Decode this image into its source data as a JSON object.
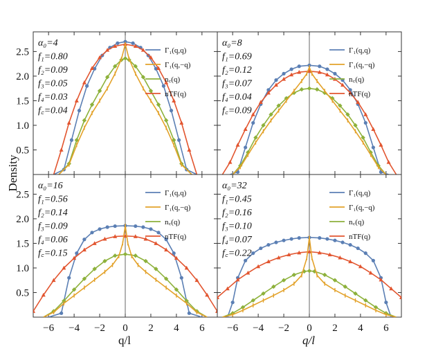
{
  "figure": {
    "ylabel": "Density",
    "xlabel_left": "q/l",
    "xlabel_right": "q/l"
  },
  "colors": {
    "gamma_qq": "#5b7fb4",
    "gamma_qmq": "#e3a22a",
    "nc": "#8db13b",
    "ntf": "#e2552f"
  },
  "legend": [
    "Γ₁(q,q)",
    "Γ₁(q,−q)",
    "n꜀(q)",
    "nTF(q)"
  ],
  "chart_data": [
    {
      "type": "line",
      "title": "α0=4",
      "params": [
        "α₀=4",
        "f₁=0.80",
        "f₂=0.09",
        "f₃=0.05",
        "f₄=0.03",
        "f꜀=0.04"
      ],
      "xlim": [
        -7.2,
        7.2
      ],
      "ylim": [
        0,
        2.9
      ],
      "xticks": [],
      "yticks": [
        "0.5",
        "1.0",
        "1.5",
        "2.0",
        "2.5"
      ],
      "series": [
        {
          "name": "Γ₁(q,q)",
          "x": [
            -5.6,
            -4.8,
            -4.2,
            -3.6,
            -3.0,
            -2.4,
            -1.8,
            -1.2,
            -0.6,
            0,
            0.6,
            1.2,
            1.8,
            2.4,
            3.0,
            3.6,
            4.2,
            4.8,
            5.6
          ],
          "y": [
            0,
            0.1,
            0.7,
            1.3,
            1.8,
            2.15,
            2.42,
            2.58,
            2.67,
            2.7,
            2.67,
            2.58,
            2.42,
            2.15,
            1.8,
            1.3,
            0.7,
            0.1,
            0
          ]
        },
        {
          "name": "Γ₁(q,−q)",
          "x": [
            -5.2,
            -4.4,
            -3.8,
            -3.2,
            -2.6,
            -2.0,
            -1.4,
            -0.8,
            -0.3,
            0,
            0.3,
            0.8,
            1.4,
            2.0,
            2.6,
            3.2,
            3.8,
            4.4,
            5.2
          ],
          "y": [
            0,
            0.2,
            0.6,
            0.95,
            1.25,
            1.5,
            1.75,
            2.05,
            2.35,
            2.65,
            2.35,
            2.05,
            1.75,
            1.5,
            1.25,
            0.95,
            0.6,
            0.2,
            0
          ]
        },
        {
          "name": "n꜀(q)",
          "x": [
            -5.2,
            -4.4,
            -3.8,
            -3.2,
            -2.6,
            -2.0,
            -1.4,
            -0.8,
            -0.3,
            0,
            0.3,
            0.8,
            1.4,
            2.0,
            2.6,
            3.2,
            3.8,
            4.4,
            5.2
          ],
          "y": [
            0,
            0.22,
            0.7,
            1.1,
            1.42,
            1.7,
            1.98,
            2.2,
            2.33,
            2.36,
            2.33,
            2.2,
            1.98,
            1.7,
            1.42,
            1.1,
            0.7,
            0.22,
            0
          ]
        },
        {
          "name": "nTF(q)",
          "x": [
            -5.6,
            -5.0,
            -4.4,
            -3.8,
            -3.2,
            -2.6,
            -2.0,
            -1.4,
            -0.8,
            0,
            0.8,
            1.4,
            2.0,
            2.6,
            3.2,
            3.8,
            4.4,
            5.0,
            5.6
          ],
          "y": [
            0,
            0.5,
            1.05,
            1.5,
            1.87,
            2.16,
            2.38,
            2.53,
            2.61,
            2.65,
            2.61,
            2.53,
            2.38,
            2.16,
            1.87,
            1.5,
            1.05,
            0.5,
            0
          ]
        }
      ]
    },
    {
      "type": "line",
      "title": "α0=8",
      "params": [
        "α₀=8",
        "f₁=0.69",
        "f₂=0.12",
        "f₃=0.07",
        "f₄=0.04",
        "f꜀=0.09"
      ],
      "xlim": [
        -7.2,
        7.2
      ],
      "ylim": [
        0,
        2.9
      ],
      "xticks": [],
      "yticks": [],
      "series": [
        {
          "name": "Γ₁(q,q)",
          "x": [
            -6.2,
            -5.6,
            -5.0,
            -4.4,
            -3.8,
            -3.2,
            -2.6,
            -2.0,
            -1.4,
            -0.8,
            0,
            0.8,
            1.4,
            2.0,
            2.6,
            3.2,
            3.8,
            4.4,
            5.0,
            5.6,
            6.2
          ],
          "y": [
            0,
            0.05,
            0.55,
            1.05,
            1.43,
            1.72,
            1.92,
            2.05,
            2.14,
            2.2,
            2.22,
            2.2,
            2.14,
            2.05,
            1.92,
            1.72,
            1.43,
            1.05,
            0.55,
            0.05,
            0
          ]
        },
        {
          "name": "Γ₁(q,−q)",
          "x": [
            -6.0,
            -5.4,
            -4.8,
            -4.2,
            -3.6,
            -3.0,
            -2.4,
            -1.8,
            -1.2,
            -0.6,
            -0.2,
            0,
            0.2,
            0.6,
            1.2,
            1.8,
            2.4,
            3.0,
            3.6,
            4.2,
            4.8,
            5.4,
            6.0
          ],
          "y": [
            0,
            0.15,
            0.4,
            0.65,
            0.88,
            1.1,
            1.3,
            1.5,
            1.7,
            1.9,
            2.05,
            2.18,
            2.05,
            1.9,
            1.7,
            1.5,
            1.3,
            1.1,
            0.88,
            0.65,
            0.4,
            0.15,
            0
          ]
        },
        {
          "name": "n꜀(q)",
          "x": [
            -6.0,
            -5.4,
            -4.8,
            -4.2,
            -3.6,
            -3.0,
            -2.4,
            -1.8,
            -1.2,
            -0.6,
            0,
            0.6,
            1.2,
            1.8,
            2.4,
            3.0,
            3.6,
            4.2,
            4.8,
            5.4,
            6.0
          ],
          "y": [
            0,
            0.18,
            0.45,
            0.75,
            1.0,
            1.22,
            1.4,
            1.55,
            1.66,
            1.73,
            1.75,
            1.73,
            1.66,
            1.55,
            1.4,
            1.22,
            1.0,
            0.75,
            0.45,
            0.18,
            0
          ]
        },
        {
          "name": "nTF(q)",
          "x": [
            -6.8,
            -6.2,
            -5.6,
            -5.0,
            -4.4,
            -3.8,
            -3.2,
            -2.6,
            -2.0,
            -1.4,
            -0.8,
            0,
            0.8,
            1.4,
            2.0,
            2.6,
            3.2,
            3.8,
            4.4,
            5.0,
            5.6,
            6.2,
            6.8
          ],
          "y": [
            0,
            0.25,
            0.6,
            0.92,
            1.22,
            1.47,
            1.66,
            1.82,
            1.94,
            2.03,
            2.08,
            2.1,
            2.08,
            2.03,
            1.94,
            1.82,
            1.66,
            1.47,
            1.22,
            0.92,
            0.6,
            0.25,
            0
          ]
        }
      ]
    },
    {
      "type": "line",
      "title": "α0=16",
      "params": [
        "α₀=16",
        "f₁=0.56",
        "f₂=0.14",
        "f₃=0.09",
        "f₄=0.06",
        "f꜀=0.15"
      ],
      "xlim": [
        -7.2,
        7.2
      ],
      "ylim": [
        0,
        2.9
      ],
      "xticks": [
        "−6",
        "−4",
        "−2",
        "0",
        "2",
        "4",
        "6"
      ],
      "yticks": [
        "0.5",
        "1.0",
        "1.5",
        "2.0",
        "2.5"
      ],
      "series": [
        {
          "name": "Γ₁(q,q)",
          "x": [
            -6.0,
            -5.0,
            -4.4,
            -3.8,
            -3.2,
            -2.6,
            -2.0,
            -1.4,
            -0.8,
            0,
            0.8,
            1.4,
            2.0,
            2.6,
            3.2,
            3.8,
            4.4,
            5.0,
            6.0
          ],
          "y": [
            0,
            0.08,
            0.8,
            1.3,
            1.58,
            1.72,
            1.79,
            1.83,
            1.85,
            1.86,
            1.85,
            1.83,
            1.79,
            1.72,
            1.58,
            1.3,
            0.8,
            0.08,
            0
          ]
        },
        {
          "name": "Γ₁(q,−q)",
          "x": [
            -6.4,
            -5.6,
            -4.8,
            -4.0,
            -3.2,
            -2.4,
            -1.6,
            -1.0,
            -0.5,
            -0.2,
            0,
            0.2,
            0.5,
            1.0,
            1.6,
            2.4,
            3.2,
            4.0,
            4.8,
            5.6,
            6.4
          ],
          "y": [
            0,
            0.1,
            0.28,
            0.44,
            0.6,
            0.76,
            0.92,
            1.06,
            1.24,
            1.5,
            1.86,
            1.5,
            1.24,
            1.06,
            0.92,
            0.76,
            0.6,
            0.44,
            0.28,
            0.1,
            0
          ]
        },
        {
          "name": "n꜀(q)",
          "x": [
            -6.4,
            -5.6,
            -4.8,
            -4.0,
            -3.2,
            -2.4,
            -1.6,
            -0.8,
            0,
            0.8,
            1.6,
            2.4,
            3.2,
            4.0,
            4.8,
            5.6,
            6.4
          ],
          "y": [
            0,
            0.12,
            0.33,
            0.56,
            0.78,
            0.98,
            1.14,
            1.25,
            1.28,
            1.25,
            1.14,
            0.98,
            0.78,
            0.56,
            0.33,
            0.12,
            0
          ]
        },
        {
          "name": "nTF(q)",
          "x": [
            -7.2,
            -6.4,
            -5.6,
            -4.8,
            -4.0,
            -3.2,
            -2.4,
            -1.6,
            -0.8,
            0,
            0.8,
            1.6,
            2.4,
            3.2,
            4.0,
            4.8,
            5.6,
            6.4,
            7.2
          ],
          "y": [
            0.12,
            0.45,
            0.75,
            1.0,
            1.2,
            1.37,
            1.5,
            1.59,
            1.64,
            1.65,
            1.64,
            1.59,
            1.5,
            1.37,
            1.2,
            1.0,
            0.75,
            0.45,
            0.12
          ]
        }
      ]
    },
    {
      "type": "line",
      "title": "α0=32",
      "params": [
        "α₀=32",
        "f₁=0.45",
        "f₂=0.16",
        "f₃=0.10",
        "f₄=0.07",
        "f꜀=0.22"
      ],
      "xlim": [
        -7.2,
        7.2
      ],
      "ylim": [
        0,
        2.9
      ],
      "xticks": [
        "−6",
        "−4",
        "−2",
        "0",
        "2",
        "4",
        "6"
      ],
      "yticks": [],
      "series": [
        {
          "name": "Γ₁(q,q)",
          "x": [
            -6.4,
            -6.0,
            -5.6,
            -5.0,
            -4.4,
            -3.8,
            -3.2,
            -2.6,
            -2.0,
            -1.4,
            -0.8,
            0,
            0.8,
            1.4,
            2.0,
            2.6,
            3.2,
            3.8,
            4.4,
            5.0,
            5.6,
            6.0,
            6.4
          ],
          "y": [
            0,
            0.3,
            0.8,
            1.15,
            1.3,
            1.4,
            1.47,
            1.52,
            1.56,
            1.59,
            1.61,
            1.62,
            1.61,
            1.59,
            1.56,
            1.52,
            1.47,
            1.4,
            1.3,
            1.15,
            0.8,
            0.3,
            0
          ]
        },
        {
          "name": "Γ₁(q,−q)",
          "x": [
            -6.8,
            -6.0,
            -5.2,
            -4.4,
            -3.6,
            -2.8,
            -2.0,
            -1.2,
            -0.6,
            -0.2,
            0,
            0.2,
            0.6,
            1.2,
            2.0,
            2.8,
            3.6,
            4.4,
            5.2,
            6.0,
            6.8
          ],
          "y": [
            0,
            0.05,
            0.14,
            0.24,
            0.34,
            0.44,
            0.55,
            0.68,
            0.85,
            1.2,
            1.62,
            1.2,
            0.85,
            0.68,
            0.55,
            0.44,
            0.34,
            0.24,
            0.14,
            0.05,
            0
          ]
        },
        {
          "name": "n꜀(q)",
          "x": [
            -6.8,
            -6.0,
            -5.2,
            -4.4,
            -3.6,
            -2.8,
            -2.0,
            -1.2,
            -0.4,
            0,
            0.4,
            1.2,
            2.0,
            2.8,
            3.6,
            4.4,
            5.2,
            6.0,
            6.8
          ],
          "y": [
            0,
            0.08,
            0.2,
            0.34,
            0.48,
            0.62,
            0.75,
            0.86,
            0.93,
            0.94,
            0.93,
            0.86,
            0.75,
            0.62,
            0.48,
            0.34,
            0.2,
            0.08,
            0
          ]
        },
        {
          "name": "nTF(q)",
          "x": [
            -7.2,
            -6.4,
            -5.6,
            -4.8,
            -4.0,
            -3.2,
            -2.4,
            -1.6,
            -0.8,
            0,
            0.8,
            1.6,
            2.4,
            3.2,
            4.0,
            4.8,
            5.6,
            6.4,
            7.2
          ],
          "y": [
            0.4,
            0.58,
            0.76,
            0.9,
            1.03,
            1.13,
            1.21,
            1.27,
            1.31,
            1.33,
            1.31,
            1.27,
            1.21,
            1.13,
            1.03,
            0.9,
            0.76,
            0.58,
            0.4
          ]
        }
      ]
    }
  ]
}
